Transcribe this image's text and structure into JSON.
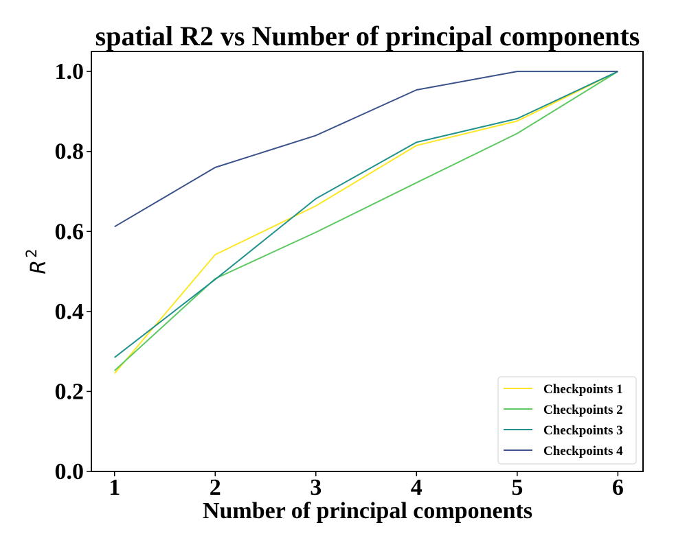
{
  "chart_data": {
    "type": "line",
    "title": "spatial R2 vs Number of principal components",
    "xlabel": "Number of principal components",
    "ylabel_base": "R",
    "ylabel_sup": "2",
    "x": [
      1,
      2,
      3,
      4,
      5,
      6
    ],
    "xticks": [
      "1",
      "2",
      "3",
      "4",
      "5",
      "6"
    ],
    "yticks": [
      "0.0",
      "0.2",
      "0.4",
      "0.6",
      "0.8",
      "1.0"
    ],
    "ytick_values": [
      0.0,
      0.2,
      0.4,
      0.6,
      0.8,
      1.0
    ],
    "xlim": [
      0.77,
      6.25
    ],
    "ylim": [
      0.0,
      1.05
    ],
    "grid": false,
    "legend_position": "bottom-right",
    "series": [
      {
        "name": "Checkpoints 1",
        "color": "#fde725",
        "values": [
          0.245,
          0.542,
          0.664,
          0.815,
          0.876,
          1.0
        ]
      },
      {
        "name": "Checkpoints 2",
        "color": "#5ec962",
        "values": [
          0.252,
          0.482,
          0.598,
          0.722,
          0.845,
          1.0
        ]
      },
      {
        "name": "Checkpoints 3",
        "color": "#21918c",
        "values": [
          0.285,
          0.48,
          0.682,
          0.823,
          0.882,
          1.0
        ]
      },
      {
        "name": "Checkpoints 4",
        "color": "#3b528b",
        "values": [
          0.612,
          0.76,
          0.84,
          0.954,
          1.0,
          1.0
        ]
      }
    ]
  }
}
